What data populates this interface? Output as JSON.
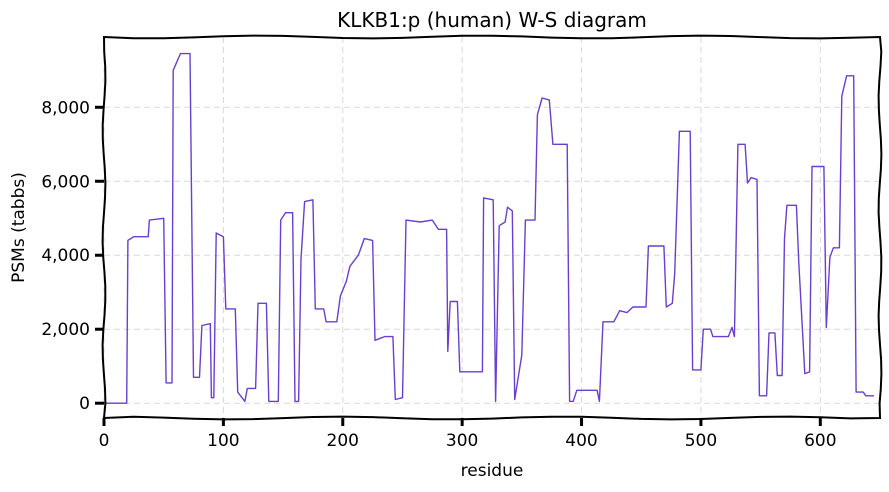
{
  "chart_data": {
    "type": "line",
    "title": "KLKB1:p (human) W-S diagram",
    "xlabel": "residue",
    "ylabel": "PSMs (tabbs)",
    "xlim": [
      0,
      650
    ],
    "ylim": [
      -400,
      9900
    ],
    "xticks": [
      0,
      100,
      200,
      300,
      400,
      500,
      600
    ],
    "xtick_labels": [
      "0",
      "100",
      "200",
      "300",
      "400",
      "500",
      "600"
    ],
    "yticks": [
      0,
      2000,
      4000,
      6000,
      8000
    ],
    "ytick_labels": [
      "0",
      "2,000",
      "4,000",
      "6,000",
      "8,000"
    ],
    "grid": true,
    "series": [
      {
        "color": "#6a3fd0",
        "points": [
          [
            0,
            0
          ],
          [
            19,
            0
          ],
          [
            20,
            4400
          ],
          [
            25,
            4500
          ],
          [
            37,
            4500
          ],
          [
            38,
            4950
          ],
          [
            50,
            5000
          ],
          [
            52,
            550
          ],
          [
            57,
            550
          ],
          [
            58,
            9000
          ],
          [
            62,
            9300
          ],
          [
            64,
            9450
          ],
          [
            72,
            9450
          ],
          [
            75,
            700
          ],
          [
            80,
            700
          ],
          [
            82,
            2100
          ],
          [
            89,
            2150
          ],
          [
            90,
            150
          ],
          [
            92,
            150
          ],
          [
            94,
            4600
          ],
          [
            100,
            4500
          ],
          [
            102,
            2550
          ],
          [
            110,
            2550
          ],
          [
            112,
            300
          ],
          [
            118,
            50
          ],
          [
            120,
            400
          ],
          [
            127,
            400
          ],
          [
            129,
            2700
          ],
          [
            136,
            2700
          ],
          [
            138,
            50
          ],
          [
            146,
            50
          ],
          [
            148,
            4950
          ],
          [
            152,
            5150
          ],
          [
            158,
            5150
          ],
          [
            160,
            50
          ],
          [
            163,
            50
          ],
          [
            165,
            3900
          ],
          [
            168,
            5450
          ],
          [
            175,
            5500
          ],
          [
            177,
            2550
          ],
          [
            184,
            2550
          ],
          [
            186,
            2200
          ],
          [
            195,
            2200
          ],
          [
            198,
            2900
          ],
          [
            203,
            3300
          ],
          [
            206,
            3700
          ],
          [
            213,
            4000
          ],
          [
            218,
            4450
          ],
          [
            225,
            4400
          ],
          [
            227,
            1700
          ],
          [
            235,
            1800
          ],
          [
            242,
            1800
          ],
          [
            244,
            100
          ],
          [
            250,
            150
          ],
          [
            253,
            4950
          ],
          [
            265,
            4900
          ],
          [
            275,
            4950
          ],
          [
            280,
            4700
          ],
          [
            287,
            4700
          ],
          [
            288,
            1400
          ],
          [
            290,
            2750
          ],
          [
            296,
            2750
          ],
          [
            298,
            850
          ],
          [
            317,
            850
          ],
          [
            318,
            5550
          ],
          [
            326,
            5500
          ],
          [
            328,
            50
          ],
          [
            331,
            4800
          ],
          [
            336,
            4900
          ],
          [
            338,
            5300
          ],
          [
            342,
            5200
          ],
          [
            344,
            100
          ],
          [
            350,
            1300
          ],
          [
            353,
            4950
          ],
          [
            361,
            4950
          ],
          [
            363,
            7800
          ],
          [
            367,
            8250
          ],
          [
            373,
            8200
          ],
          [
            376,
            7000
          ],
          [
            388,
            7000
          ],
          [
            390,
            50
          ],
          [
            393,
            50
          ],
          [
            396,
            350
          ],
          [
            413,
            350
          ],
          [
            415,
            50
          ],
          [
            418,
            2200
          ],
          [
            427,
            2200
          ],
          [
            432,
            2500
          ],
          [
            438,
            2450
          ],
          [
            443,
            2600
          ],
          [
            454,
            2600
          ],
          [
            456,
            4250
          ],
          [
            469,
            4250
          ],
          [
            471,
            2600
          ],
          [
            476,
            2700
          ],
          [
            478,
            3500
          ],
          [
            482,
            7350
          ],
          [
            491,
            7350
          ],
          [
            493,
            900
          ],
          [
            500,
            900
          ],
          [
            502,
            2000
          ],
          [
            508,
            2000
          ],
          [
            510,
            1800
          ],
          [
            523,
            1800
          ],
          [
            526,
            2050
          ],
          [
            528,
            1800
          ],
          [
            531,
            7000
          ],
          [
            537,
            7000
          ],
          [
            539,
            5950
          ],
          [
            542,
            6100
          ],
          [
            547,
            6050
          ],
          [
            549,
            200
          ],
          [
            555,
            200
          ],
          [
            557,
            1900
          ],
          [
            562,
            1900
          ],
          [
            564,
            750
          ],
          [
            568,
            750
          ],
          [
            570,
            4450
          ],
          [
            572,
            5350
          ],
          [
            580,
            5350
          ],
          [
            582,
            3800
          ],
          [
            587,
            800
          ],
          [
            591,
            850
          ],
          [
            593,
            6400
          ],
          [
            603,
            6400
          ],
          [
            605,
            2050
          ],
          [
            608,
            3950
          ],
          [
            611,
            4200
          ],
          [
            616,
            4200
          ],
          [
            618,
            8300
          ],
          [
            622,
            8850
          ],
          [
            628,
            8850
          ],
          [
            630,
            300
          ],
          [
            636,
            300
          ],
          [
            638,
            200
          ],
          [
            645,
            200
          ]
        ]
      }
    ]
  }
}
